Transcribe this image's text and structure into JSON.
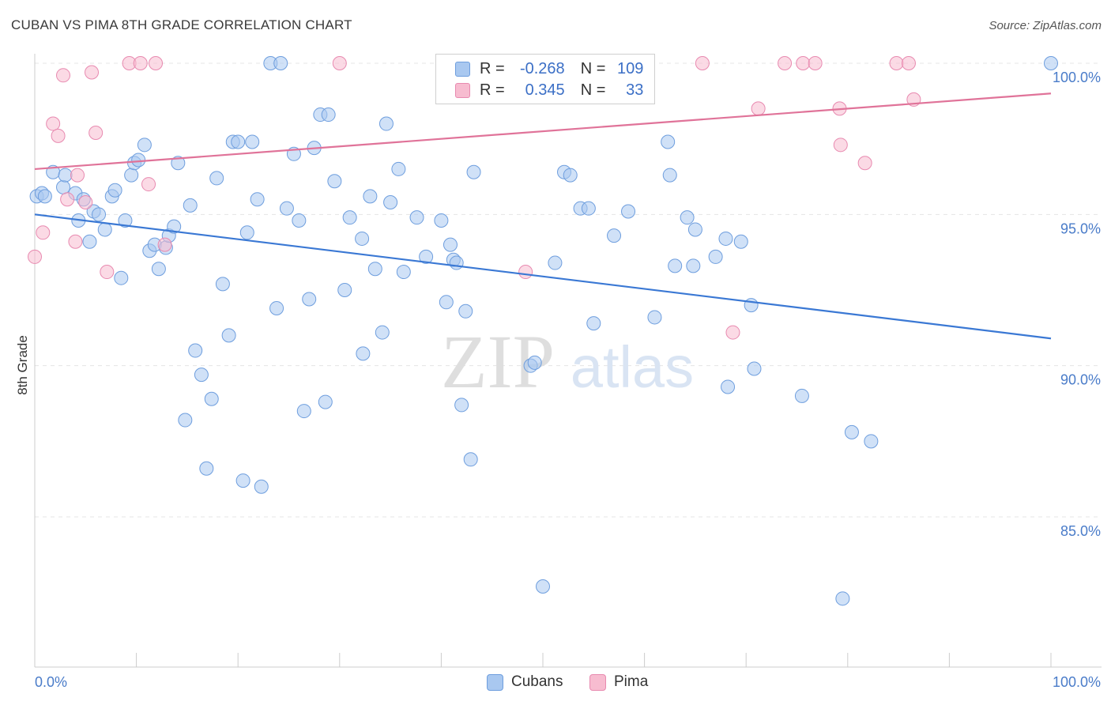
{
  "title": "CUBAN VS PIMA 8TH GRADE CORRELATION CHART",
  "source": "Source: ZipAtlas.com",
  "watermark": {
    "zip": "ZIP",
    "atlas": "atlas"
  },
  "legend": {
    "r_label": "R =",
    "n_label": "N =",
    "rows": [
      {
        "r": "-0.268",
        "n": "109",
        "fill": "#a9c8f0",
        "stroke": "#6e9ede"
      },
      {
        "r": "0.345",
        "n": "33",
        "fill": "#f7bcd0",
        "stroke": "#e88ab0"
      }
    ]
  },
  "bottom_legend": [
    {
      "label": "Cubans",
      "fill": "#a9c8f0",
      "stroke": "#6e9ede"
    },
    {
      "label": "Pima",
      "fill": "#f7bcd0",
      "stroke": "#e88ab0"
    }
  ],
  "chart_data": {
    "type": "scatter",
    "title": "CUBAN VS PIMA 8TH GRADE CORRELATION CHART",
    "xlabel": "",
    "ylabel": "8th Grade",
    "xlim": [
      0,
      100
    ],
    "ylim": [
      80.0,
      100.5
    ],
    "x_tick_labels": [
      "0.0%",
      "100.0%"
    ],
    "y_ticks": [
      85,
      90,
      95,
      100
    ],
    "y_tick_labels": [
      "85.0%",
      "90.0%",
      "95.0%",
      "100.0%"
    ],
    "grid": true,
    "series": [
      {
        "name": "Cubans",
        "color": "#3a78d4",
        "fill": "#a9c8f0",
        "trend": {
          "x": [
            0,
            100
          ],
          "y": [
            95.0,
            90.9
          ]
        },
        "points": [
          [
            0.2,
            95.6
          ],
          [
            0.7,
            95.7
          ],
          [
            1.0,
            95.6
          ],
          [
            1.8,
            96.4
          ],
          [
            2.8,
            95.9
          ],
          [
            3.0,
            96.3
          ],
          [
            4.0,
            95.7
          ],
          [
            4.3,
            94.8
          ],
          [
            4.8,
            95.5
          ],
          [
            5.4,
            94.1
          ],
          [
            5.8,
            95.1
          ],
          [
            6.3,
            95.0
          ],
          [
            6.9,
            94.5
          ],
          [
            7.6,
            95.6
          ],
          [
            7.9,
            95.8
          ],
          [
            8.5,
            92.9
          ],
          [
            8.9,
            94.8
          ],
          [
            9.5,
            96.3
          ],
          [
            9.8,
            96.7
          ],
          [
            10.2,
            96.8
          ],
          [
            10.8,
            97.3
          ],
          [
            11.3,
            93.8
          ],
          [
            11.8,
            94.0
          ],
          [
            12.2,
            93.2
          ],
          [
            12.9,
            93.9
          ],
          [
            13.2,
            94.3
          ],
          [
            13.7,
            94.6
          ],
          [
            14.1,
            96.7
          ],
          [
            14.8,
            88.2
          ],
          [
            15.3,
            95.3
          ],
          [
            15.8,
            90.5
          ],
          [
            16.4,
            89.7
          ],
          [
            16.9,
            86.6
          ],
          [
            17.4,
            88.9
          ],
          [
            17.9,
            96.2
          ],
          [
            18.5,
            92.7
          ],
          [
            19.1,
            91.0
          ],
          [
            19.5,
            97.4
          ],
          [
            20.0,
            97.4
          ],
          [
            20.5,
            86.2
          ],
          [
            20.9,
            94.4
          ],
          [
            21.4,
            97.4
          ],
          [
            21.9,
            95.5
          ],
          [
            22.3,
            86.0
          ],
          [
            23.2,
            100.0
          ],
          [
            23.8,
            91.9
          ],
          [
            24.2,
            100.0
          ],
          [
            24.8,
            95.2
          ],
          [
            25.5,
            97.0
          ],
          [
            26.0,
            94.8
          ],
          [
            26.5,
            88.5
          ],
          [
            27.0,
            92.2
          ],
          [
            27.5,
            97.2
          ],
          [
            28.1,
            98.3
          ],
          [
            28.6,
            88.8
          ],
          [
            28.9,
            98.3
          ],
          [
            29.5,
            96.1
          ],
          [
            30.5,
            92.5
          ],
          [
            31.0,
            94.9
          ],
          [
            32.2,
            94.2
          ],
          [
            32.3,
            90.4
          ],
          [
            33.0,
            95.6
          ],
          [
            33.5,
            93.2
          ],
          [
            34.2,
            91.1
          ],
          [
            34.6,
            98.0
          ],
          [
            35.0,
            95.4
          ],
          [
            35.8,
            96.5
          ],
          [
            36.3,
            93.1
          ],
          [
            37.6,
            94.9
          ],
          [
            38.5,
            93.6
          ],
          [
            40.0,
            94.8
          ],
          [
            40.5,
            92.1
          ],
          [
            40.9,
            94.0
          ],
          [
            41.2,
            93.5
          ],
          [
            41.5,
            93.4
          ],
          [
            42.0,
            88.7
          ],
          [
            42.4,
            91.8
          ],
          [
            42.9,
            86.9
          ],
          [
            43.2,
            96.4
          ],
          [
            48.8,
            90.0
          ],
          [
            49.2,
            90.1
          ],
          [
            50.0,
            82.7
          ],
          [
            51.2,
            93.4
          ],
          [
            52.1,
            96.4
          ],
          [
            52.7,
            96.3
          ],
          [
            53.7,
            95.2
          ],
          [
            54.5,
            95.2
          ],
          [
            55.0,
            91.4
          ],
          [
            57.0,
            94.3
          ],
          [
            58.4,
            95.1
          ],
          [
            61.0,
            91.6
          ],
          [
            62.3,
            97.4
          ],
          [
            62.5,
            96.3
          ],
          [
            63.0,
            93.3
          ],
          [
            64.2,
            94.9
          ],
          [
            64.8,
            93.3
          ],
          [
            65.0,
            94.5
          ],
          [
            67.0,
            93.6
          ],
          [
            68.0,
            94.2
          ],
          [
            68.2,
            89.3
          ],
          [
            69.5,
            94.1
          ],
          [
            70.5,
            92.0
          ],
          [
            70.8,
            89.9
          ],
          [
            75.5,
            89.0
          ],
          [
            80.4,
            87.8
          ],
          [
            82.3,
            87.5
          ],
          [
            79.5,
            82.3
          ],
          [
            100.0,
            100.0
          ]
        ]
      },
      {
        "name": "Pima",
        "color": "#e07399",
        "fill": "#f7bcd0",
        "trend": {
          "x": [
            0,
            100
          ],
          "y": [
            96.5,
            99.0
          ]
        },
        "points": [
          [
            0.0,
            93.6
          ],
          [
            0.8,
            94.4
          ],
          [
            1.8,
            98.0
          ],
          [
            2.3,
            97.6
          ],
          [
            2.8,
            99.6
          ],
          [
            3.2,
            95.5
          ],
          [
            4.0,
            94.1
          ],
          [
            4.2,
            96.3
          ],
          [
            5.0,
            95.4
          ],
          [
            5.6,
            99.7
          ],
          [
            6.0,
            97.7
          ],
          [
            7.1,
            93.1
          ],
          [
            9.3,
            100.0
          ],
          [
            10.4,
            100.0
          ],
          [
            11.2,
            96.0
          ],
          [
            11.9,
            100.0
          ],
          [
            12.8,
            94.0
          ],
          [
            30.0,
            100.0
          ],
          [
            48.3,
            93.1
          ],
          [
            65.7,
            100.0
          ],
          [
            68.7,
            91.1
          ],
          [
            71.2,
            98.5
          ],
          [
            73.8,
            100.0
          ],
          [
            75.6,
            100.0
          ],
          [
            76.8,
            100.0
          ],
          [
            79.2,
            98.5
          ],
          [
            79.3,
            97.3
          ],
          [
            81.7,
            96.7
          ],
          [
            84.8,
            100.0
          ],
          [
            86.0,
            100.0
          ],
          [
            86.5,
            98.8
          ]
        ]
      }
    ]
  }
}
